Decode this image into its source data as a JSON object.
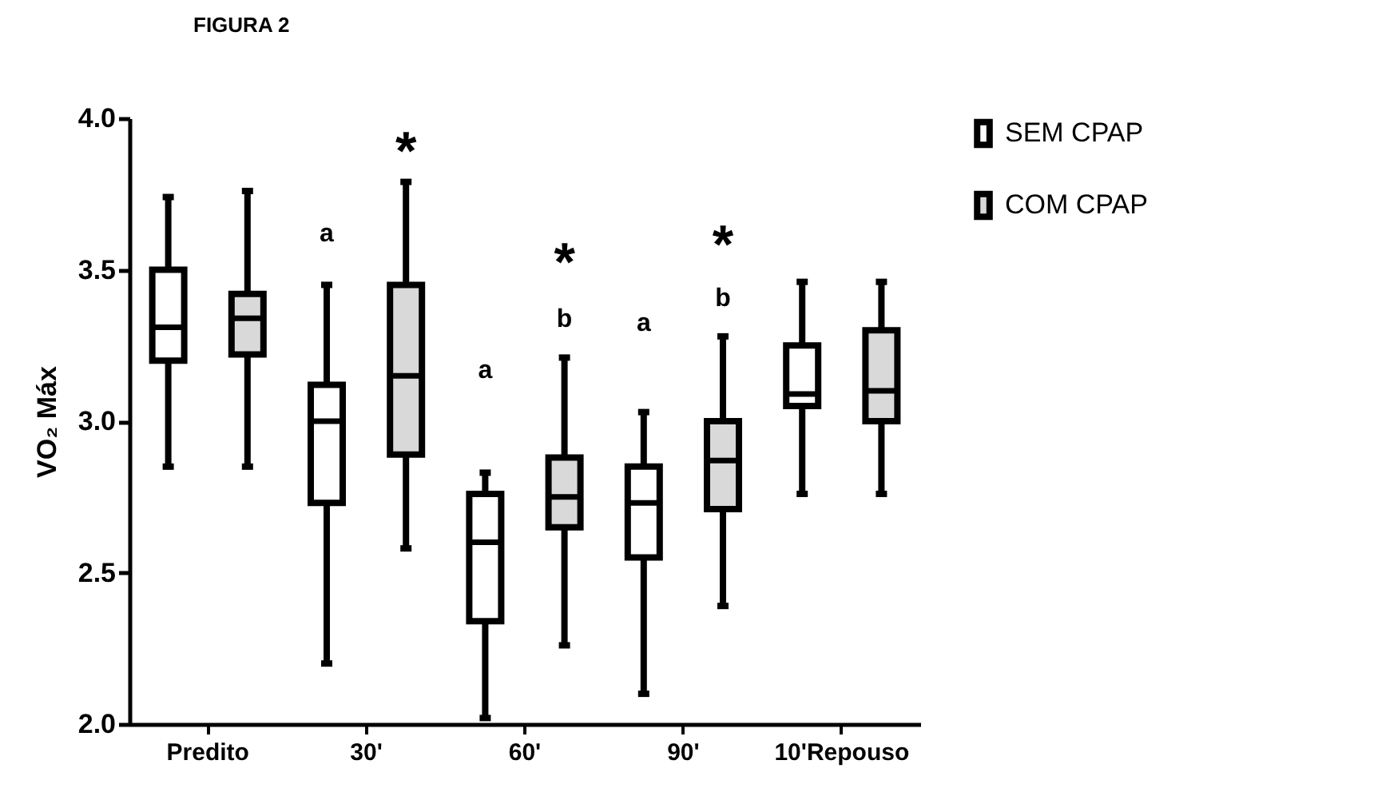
{
  "chart_data": {
    "type": "box",
    "title": "FIGURA 2",
    "ylabel": "VO₂ Máx",
    "categories": [
      "Predito",
      "30'",
      "60'",
      "90'",
      "10'Repouso"
    ],
    "series": [
      {
        "name": "SEM CPAP",
        "color": "#ffffff",
        "boxes": [
          {
            "low": 2.85,
            "q1": 3.2,
            "median": 3.31,
            "q3": 3.5,
            "high": 3.74
          },
          {
            "low": 2.2,
            "q1": 2.73,
            "median": 3.0,
            "q3": 3.12,
            "high": 3.45
          },
          {
            "low": 2.02,
            "q1": 2.34,
            "median": 2.6,
            "q3": 2.76,
            "high": 2.83
          },
          {
            "low": 2.1,
            "q1": 2.55,
            "median": 2.73,
            "q3": 2.85,
            "high": 3.03
          },
          {
            "low": 2.76,
            "q1": 3.05,
            "median": 3.09,
            "q3": 3.25,
            "high": 3.46
          }
        ]
      },
      {
        "name": "COM CPAP",
        "color": "#d9d9d9",
        "boxes": [
          {
            "low": 2.85,
            "q1": 3.22,
            "median": 3.34,
            "q3": 3.42,
            "high": 3.76
          },
          {
            "low": 2.58,
            "q1": 2.89,
            "median": 3.15,
            "q3": 3.45,
            "high": 3.79
          },
          {
            "low": 2.26,
            "q1": 2.65,
            "median": 2.75,
            "q3": 2.88,
            "high": 3.21
          },
          {
            "low": 2.39,
            "q1": 2.71,
            "median": 2.87,
            "q3": 3.0,
            "high": 3.28
          },
          {
            "low": 2.76,
            "q1": 3.0,
            "median": 3.1,
            "q3": 3.3,
            "high": 3.46
          }
        ]
      }
    ],
    "ylim": [
      2.0,
      4.0
    ],
    "yticks": [
      {
        "value": 2,
        "label": "2.0"
      },
      {
        "value": 2.5,
        "label": "2.5"
      },
      {
        "value": 3,
        "label": "3.0"
      },
      {
        "value": 3.5,
        "label": "3.5"
      },
      {
        "value": 4,
        "label": "4.0"
      }
    ],
    "annotations": [
      "a",
      "*",
      "a",
      "b",
      "*",
      "a",
      "b",
      "*"
    ],
    "grid": false,
    "legend": "top right"
  }
}
